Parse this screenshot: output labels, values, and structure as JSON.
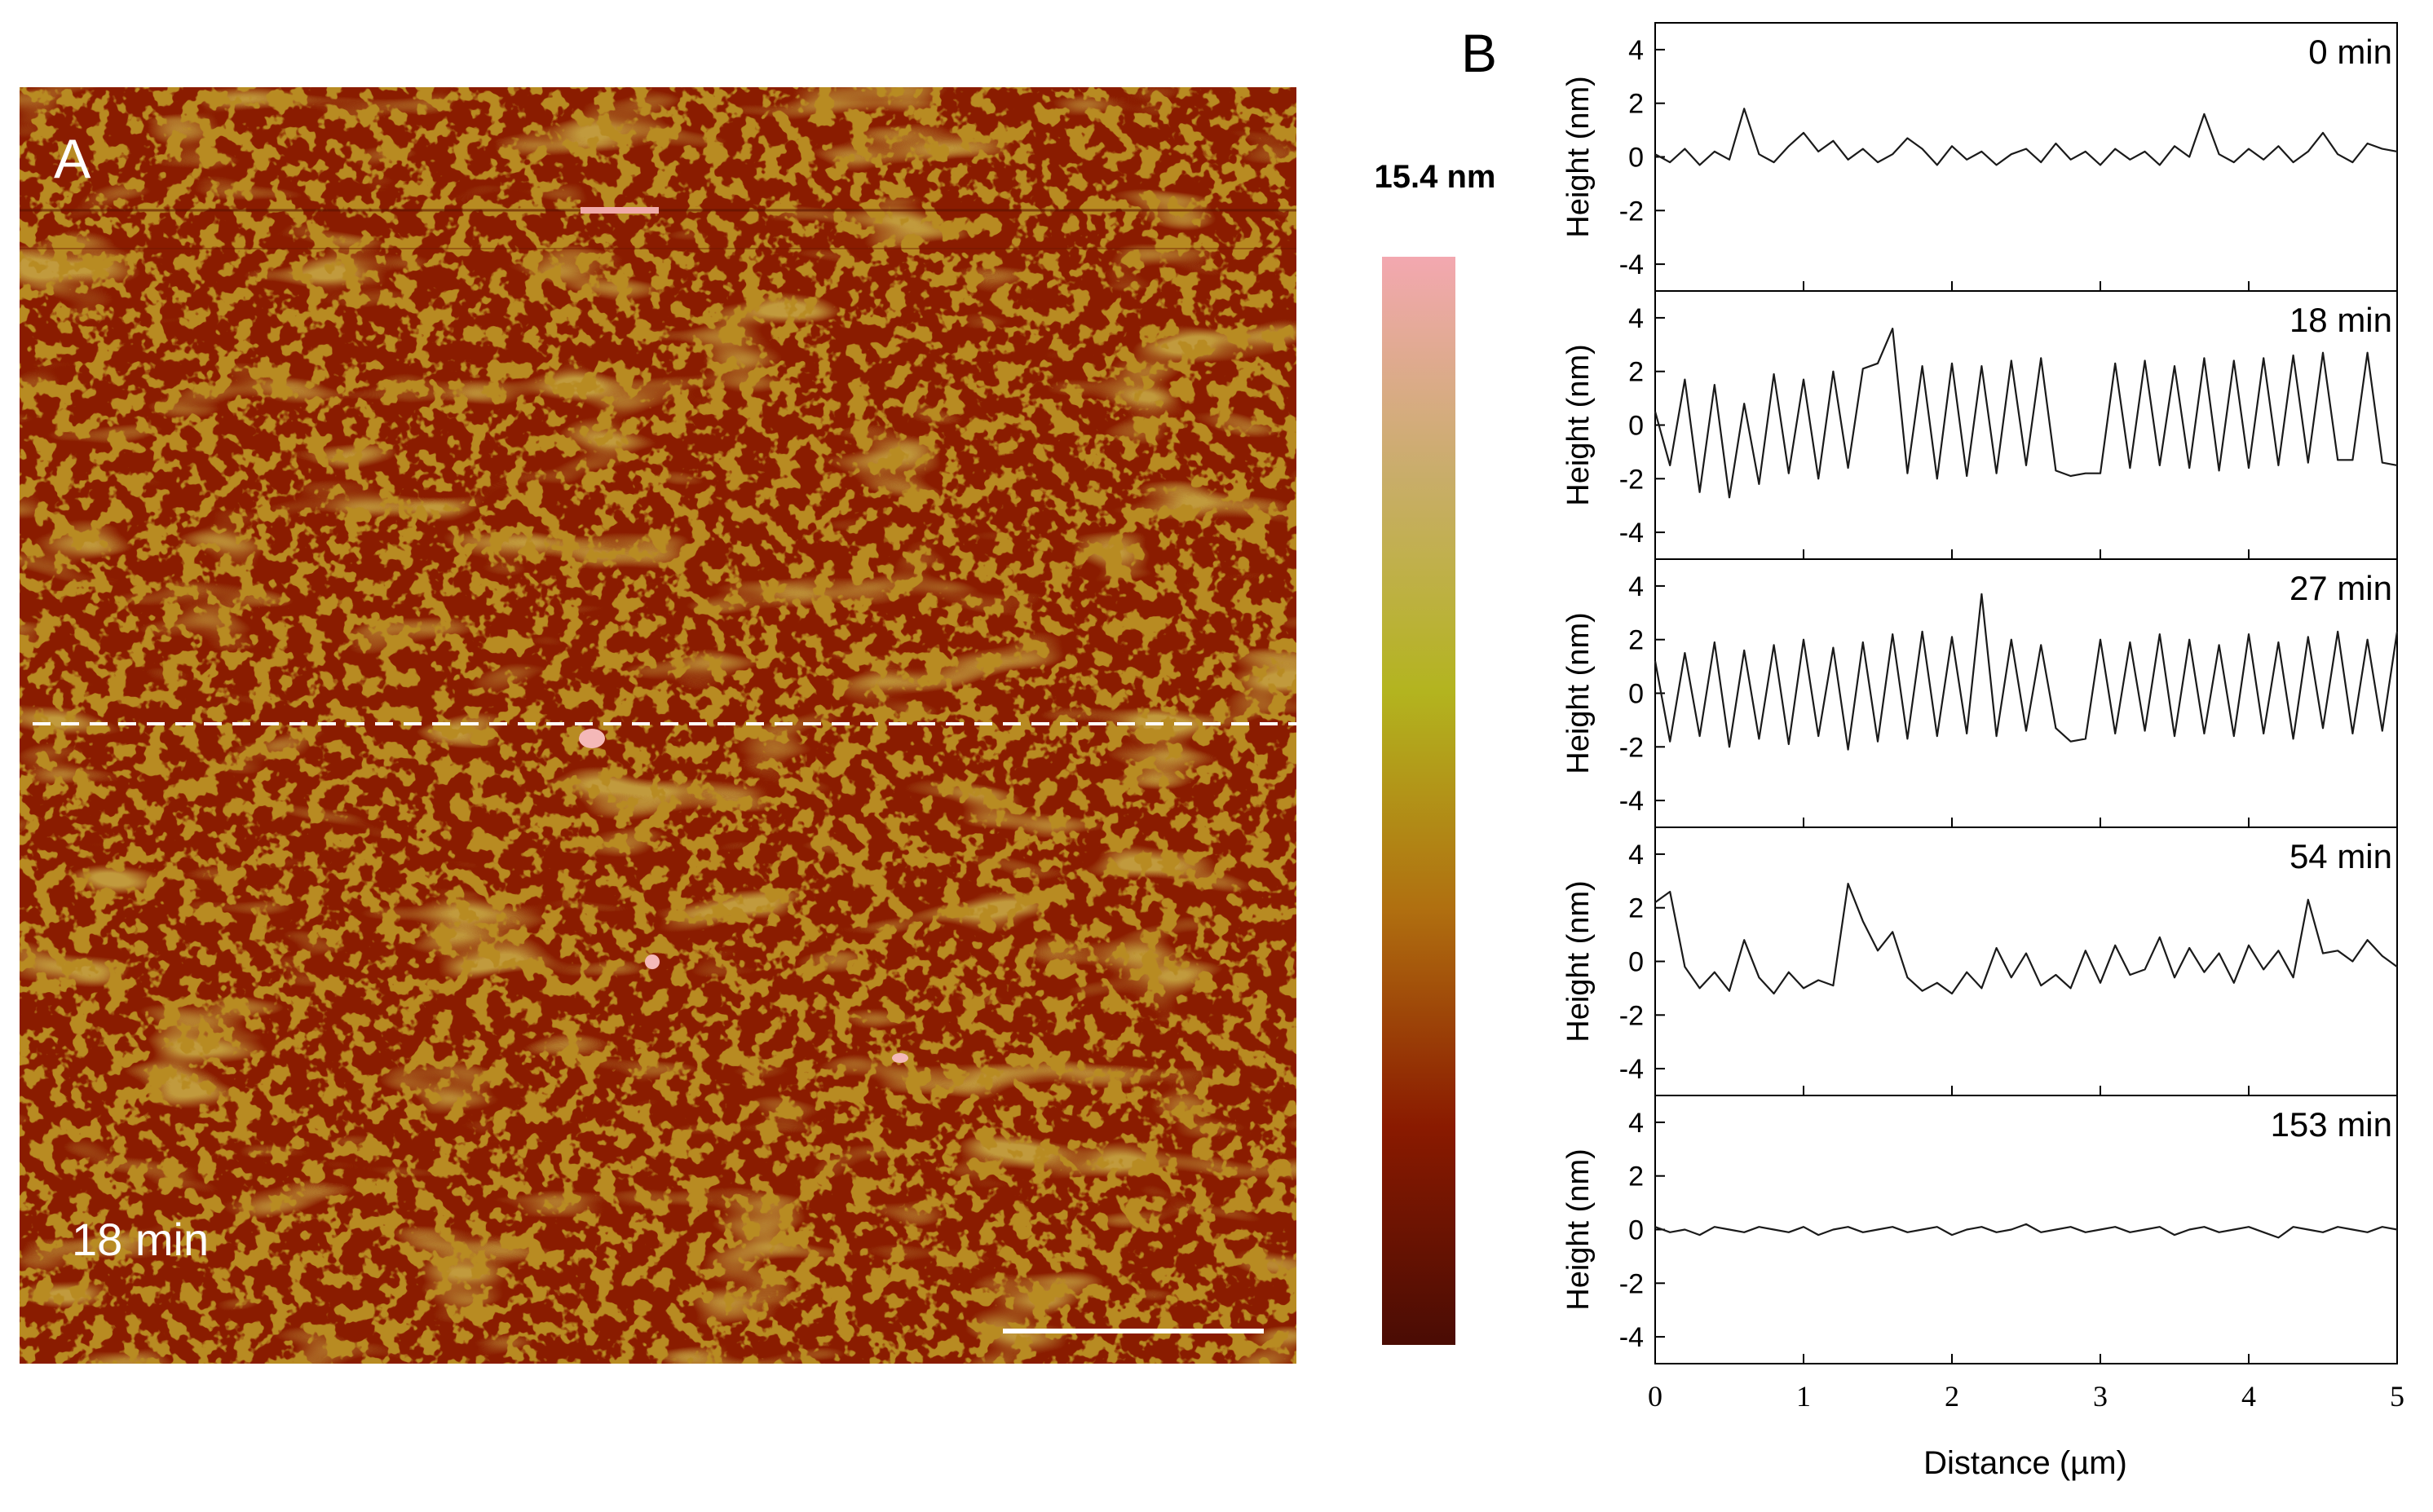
{
  "panel_a": {
    "label": "A",
    "time_label": "18 min",
    "scale_max_label": "15.4 nm",
    "colors": {
      "background": "#8a1c00",
      "islands": "#b88b22",
      "terrace_light": "#c19a3c",
      "peak": "#f0a9a9",
      "colorbar_stops": [
        "#f3a8b0",
        "#c9ad6a",
        "#b3b41f",
        "#b06f10",
        "#8a1a00",
        "#4a0c04"
      ]
    }
  },
  "panel_b": {
    "label": "B",
    "xlabel": "Distance (µm)",
    "ylabel": "Height (nm)"
  },
  "chart_data": {
    "type": "line",
    "title": "",
    "xlabel": "Distance (µm)",
    "ylabel": "Height (nm)",
    "xlim": [
      0,
      5
    ],
    "ylim": [
      -5,
      5
    ],
    "xticks": [
      0,
      1,
      2,
      3,
      4,
      5
    ],
    "yticks": [
      -4,
      -2,
      0,
      2,
      4
    ],
    "grid": false,
    "panels": [
      {
        "name": "0 min",
        "x": [
          0,
          0.1,
          0.2,
          0.3,
          0.4,
          0.5,
          0.6,
          0.7,
          0.8,
          0.9,
          1.0,
          1.1,
          1.2,
          1.3,
          1.4,
          1.5,
          1.6,
          1.7,
          1.8,
          1.9,
          2.0,
          2.1,
          2.2,
          2.3,
          2.4,
          2.5,
          2.6,
          2.7,
          2.8,
          2.9,
          3.0,
          3.1,
          3.2,
          3.3,
          3.4,
          3.5,
          3.6,
          3.7,
          3.8,
          3.9,
          4.0,
          4.1,
          4.2,
          4.3,
          4.4,
          4.5,
          4.6,
          4.7,
          4.8,
          4.9,
          5.0
        ],
        "values": [
          0.1,
          -0.2,
          0.3,
          -0.3,
          0.2,
          -0.1,
          1.8,
          0.1,
          -0.2,
          0.4,
          0.9,
          0.2,
          0.6,
          -0.1,
          0.3,
          -0.2,
          0.1,
          0.7,
          0.3,
          -0.3,
          0.4,
          -0.1,
          0.2,
          -0.3,
          0.1,
          0.3,
          -0.2,
          0.5,
          -0.1,
          0.2,
          -0.3,
          0.3,
          -0.1,
          0.2,
          -0.3,
          0.4,
          0.0,
          1.6,
          0.1,
          -0.2,
          0.3,
          -0.1,
          0.4,
          -0.2,
          0.2,
          0.9,
          0.1,
          -0.2,
          0.5,
          0.3,
          0.2
        ]
      },
      {
        "name": "18 min",
        "x": [
          0,
          0.1,
          0.2,
          0.3,
          0.4,
          0.5,
          0.6,
          0.7,
          0.8,
          0.9,
          1.0,
          1.1,
          1.2,
          1.3,
          1.4,
          1.5,
          1.6,
          1.7,
          1.8,
          1.9,
          2.0,
          2.1,
          2.2,
          2.3,
          2.4,
          2.5,
          2.6,
          2.7,
          2.8,
          2.9,
          3.0,
          3.1,
          3.2,
          3.3,
          3.4,
          3.5,
          3.6,
          3.7,
          3.8,
          3.9,
          4.0,
          4.1,
          4.2,
          4.3,
          4.4,
          4.5,
          4.6,
          4.7,
          4.8,
          4.9,
          5.0
        ],
        "values": [
          0.5,
          -1.5,
          1.7,
          -2.5,
          1.5,
          -2.7,
          0.8,
          -2.2,
          1.9,
          -1.8,
          1.7,
          -2.0,
          2.0,
          -1.6,
          2.1,
          2.3,
          3.6,
          -1.8,
          2.2,
          -2.0,
          2.3,
          -1.9,
          2.2,
          -1.8,
          2.4,
          -1.5,
          2.5,
          -1.7,
          -1.9,
          -1.8,
          -1.8,
          2.3,
          -1.6,
          2.4,
          -1.5,
          2.2,
          -1.6,
          2.5,
          -1.7,
          2.4,
          -1.6,
          2.5,
          -1.5,
          2.6,
          -1.4,
          2.7,
          -1.3,
          -1.3,
          2.7,
          -1.4,
          -1.5
        ]
      },
      {
        "name": "27 min",
        "x": [
          0,
          0.1,
          0.2,
          0.3,
          0.4,
          0.5,
          0.6,
          0.7,
          0.8,
          0.9,
          1.0,
          1.1,
          1.2,
          1.3,
          1.4,
          1.5,
          1.6,
          1.7,
          1.8,
          1.9,
          2.0,
          2.1,
          2.2,
          2.3,
          2.4,
          2.5,
          2.6,
          2.7,
          2.8,
          2.9,
          3.0,
          3.1,
          3.2,
          3.3,
          3.4,
          3.5,
          3.6,
          3.7,
          3.8,
          3.9,
          4.0,
          4.1,
          4.2,
          4.3,
          4.4,
          4.5,
          4.6,
          4.7,
          4.8,
          4.9,
          5.0
        ],
        "values": [
          1.2,
          -1.8,
          1.5,
          -1.6,
          1.9,
          -2.0,
          1.6,
          -1.7,
          1.8,
          -1.9,
          2.0,
          -1.6,
          1.7,
          -2.1,
          1.9,
          -1.8,
          2.2,
          -1.7,
          2.3,
          -1.6,
          2.1,
          -1.5,
          3.7,
          -1.6,
          2.0,
          -1.4,
          1.8,
          -1.3,
          -1.8,
          -1.7,
          2.0,
          -1.5,
          1.9,
          -1.4,
          2.2,
          -1.6,
          2.0,
          -1.5,
          1.8,
          -1.6,
          2.2,
          -1.5,
          1.9,
          -1.7,
          2.1,
          -1.3,
          2.3,
          -1.5,
          2.0,
          -1.4,
          2.3
        ]
      },
      {
        "name": "54 min",
        "x": [
          0,
          0.1,
          0.2,
          0.3,
          0.4,
          0.5,
          0.6,
          0.7,
          0.8,
          0.9,
          1.0,
          1.1,
          1.2,
          1.3,
          1.4,
          1.5,
          1.6,
          1.7,
          1.8,
          1.9,
          2.0,
          2.1,
          2.2,
          2.3,
          2.4,
          2.5,
          2.6,
          2.7,
          2.8,
          2.9,
          3.0,
          3.1,
          3.2,
          3.3,
          3.4,
          3.5,
          3.6,
          3.7,
          3.8,
          3.9,
          4.0,
          4.1,
          4.2,
          4.3,
          4.4,
          4.5,
          4.6,
          4.7,
          4.8,
          4.9,
          5.0
        ],
        "values": [
          2.2,
          2.6,
          -0.2,
          -1.0,
          -0.4,
          -1.1,
          0.8,
          -0.6,
          -1.2,
          -0.4,
          -1.0,
          -0.7,
          -0.9,
          2.9,
          1.5,
          0.4,
          1.1,
          -0.6,
          -1.1,
          -0.8,
          -1.2,
          -0.4,
          -1.0,
          0.5,
          -0.6,
          0.3,
          -0.9,
          -0.5,
          -1.0,
          0.4,
          -0.8,
          0.6,
          -0.5,
          -0.3,
          0.9,
          -0.6,
          0.5,
          -0.4,
          0.3,
          -0.8,
          0.6,
          -0.3,
          0.4,
          -0.6,
          2.3,
          0.3,
          0.4,
          0.0,
          0.8,
          0.2,
          -0.2
        ]
      },
      {
        "name": "153 min",
        "x": [
          0,
          0.1,
          0.2,
          0.3,
          0.4,
          0.5,
          0.6,
          0.7,
          0.8,
          0.9,
          1.0,
          1.1,
          1.2,
          1.3,
          1.4,
          1.5,
          1.6,
          1.7,
          1.8,
          1.9,
          2.0,
          2.1,
          2.2,
          2.3,
          2.4,
          2.5,
          2.6,
          2.7,
          2.8,
          2.9,
          3.0,
          3.1,
          3.2,
          3.3,
          3.4,
          3.5,
          3.6,
          3.7,
          3.8,
          3.9,
          4.0,
          4.1,
          4.2,
          4.3,
          4.4,
          4.5,
          4.6,
          4.7,
          4.8,
          4.9,
          5.0
        ],
        "values": [
          0.1,
          -0.1,
          0.0,
          -0.2,
          0.1,
          0.0,
          -0.1,
          0.1,
          0.0,
          -0.1,
          0.1,
          -0.2,
          0.0,
          0.1,
          -0.1,
          0.0,
          0.1,
          -0.1,
          0.0,
          0.1,
          -0.2,
          0.0,
          0.1,
          -0.1,
          0.0,
          0.2,
          -0.1,
          0.0,
          0.1,
          -0.1,
          0.0,
          0.1,
          -0.1,
          0.0,
          0.1,
          -0.2,
          0.0,
          0.1,
          -0.1,
          0.0,
          0.1,
          -0.1,
          -0.3,
          0.1,
          0.0,
          -0.1,
          0.1,
          0.0,
          -0.1,
          0.1,
          0.0
        ]
      }
    ]
  }
}
